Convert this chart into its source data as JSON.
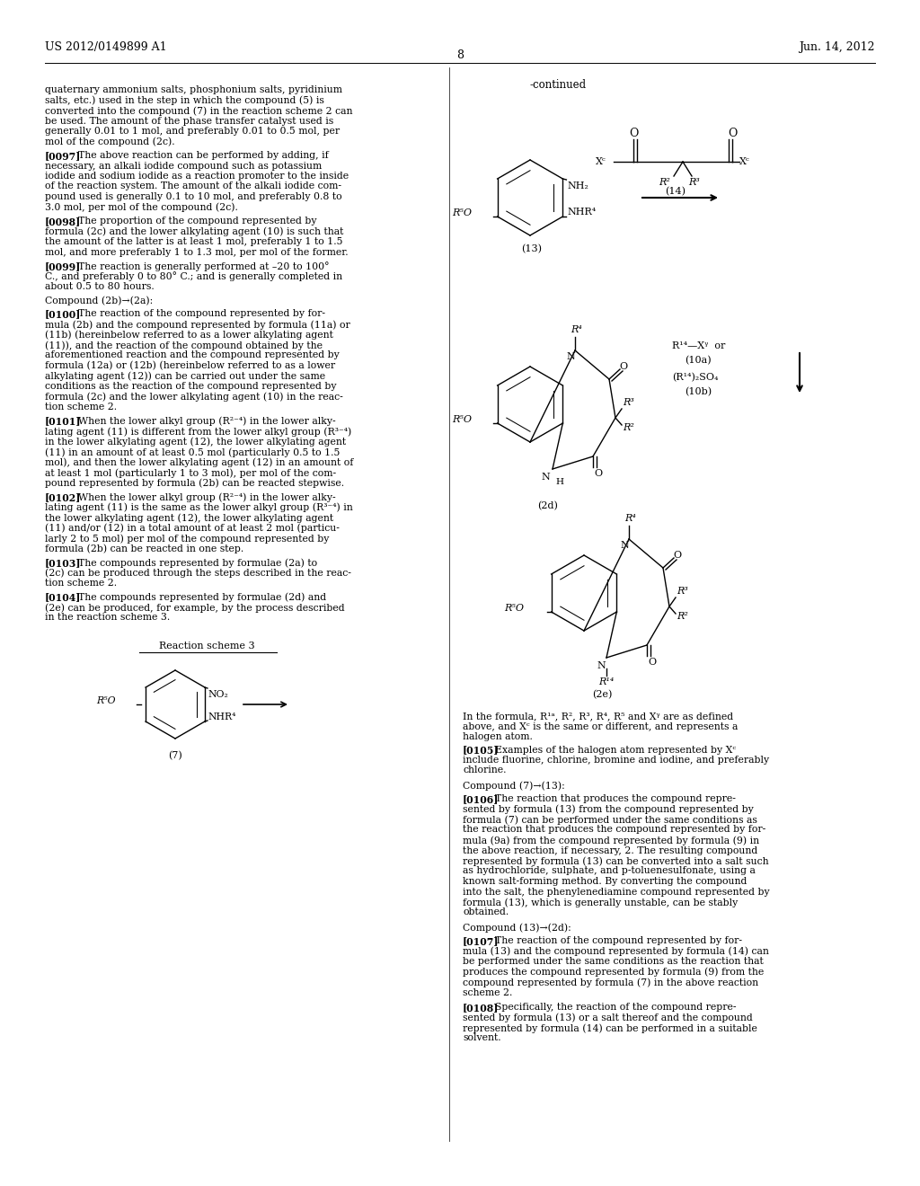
{
  "bg_color": "#ffffff",
  "header_left": "US 2012/0149899 A1",
  "header_right": "Jun. 14, 2012",
  "page_number": "8"
}
